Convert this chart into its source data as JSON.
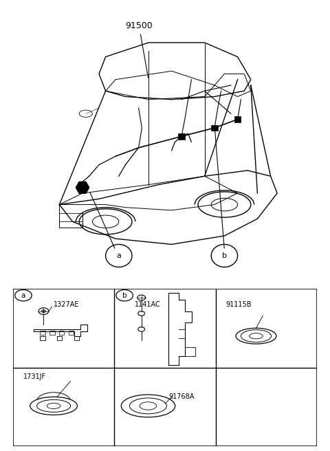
{
  "background_color": "#ffffff",
  "line_color": "#000000",
  "car_label": "91500",
  "figsize": [
    4.8,
    6.56
  ],
  "dpi": 100,
  "parts_grid": {
    "rows": 2,
    "cols": 3,
    "cells": [
      {
        "row": 0,
        "col": 0,
        "code": "1327AE",
        "callout": "a",
        "type": "bracket"
      },
      {
        "row": 0,
        "col": 1,
        "code": "1141AC",
        "callout": "b",
        "type": "clip"
      },
      {
        "row": 0,
        "col": 2,
        "code": "91115B",
        "callout": "",
        "type": "grommet_small"
      },
      {
        "row": 1,
        "col": 0,
        "code": "1731JF",
        "callout": "",
        "type": "grommet_large"
      },
      {
        "row": 1,
        "col": 1,
        "code": "91768A",
        "callout": "",
        "type": "grommet_oval"
      },
      {
        "row": 1,
        "col": 2,
        "code": "",
        "callout": "",
        "type": "empty"
      }
    ]
  }
}
